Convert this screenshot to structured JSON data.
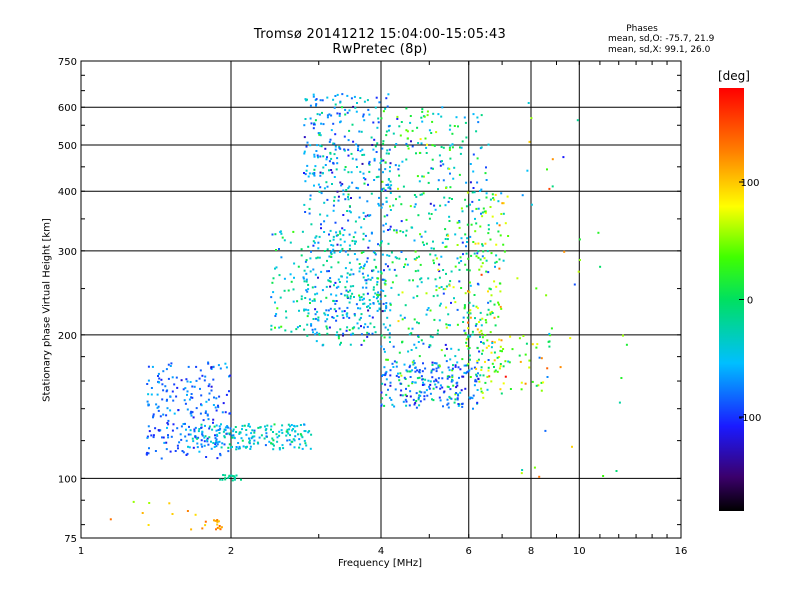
{
  "chart_data": {
    "type": "scatter",
    "title": "Tromsø 20141212 15:04:00-15:05:43",
    "subtitle": "RwPretec (8p)",
    "xlabel": "Frequency [MHz]",
    "ylabel": "Stationary phase Virtual Height [km]",
    "x_scale": "log",
    "y_scale": "log",
    "xlim": [
      1,
      16
    ],
    "ylim": [
      75,
      750
    ],
    "x_ticks": [
      1,
      2,
      4,
      6,
      8,
      10,
      16
    ],
    "x_tick_labels": [
      "1",
      "2",
      "4",
      "6",
      "8",
      "10",
      "16"
    ],
    "y_ticks": [
      75,
      100,
      200,
      300,
      400,
      500,
      600,
      750
    ],
    "y_tick_labels": [
      "75",
      "100",
      "200",
      "300",
      "400",
      "500",
      "600",
      "750"
    ],
    "grid": true,
    "phase_stats": {
      "title": "Phases",
      "o_line": "mean, sd,O: -75.7, 21.9",
      "x_line": "mean, sd,X:  99.1, 26.0"
    },
    "colorbar": {
      "unit": "[deg]",
      "range": [
        -180,
        180
      ],
      "ticks": [
        100,
        0,
        -100
      ],
      "tick_labels": [
        "100",
        "0",
        "-100"
      ],
      "colormap": "rainbow"
    },
    "groups": [
      {
        "x": [
          1.35,
          2.0
        ],
        "y": [
          110,
          175
        ],
        "n": 220,
        "phase_mean": -85,
        "phase_sd": 25
      },
      {
        "x": [
          1.6,
          2.9
        ],
        "y": [
          115,
          130
        ],
        "n": 200,
        "phase_mean": -40,
        "phase_sd": 30
      },
      {
        "x": [
          1.9,
          2.1
        ],
        "y": [
          99,
          102
        ],
        "n": 18,
        "phase_mean": -20,
        "phase_sd": 10
      },
      {
        "x": [
          2.8,
          4.2
        ],
        "y": [
          190,
          640
        ],
        "n": 520,
        "phase_mean": -60,
        "phase_sd": 45
      },
      {
        "x": [
          2.4,
          4.0
        ],
        "y": [
          200,
          330
        ],
        "n": 180,
        "phase_mean": -30,
        "phase_sd": 40
      },
      {
        "x": [
          4.0,
          6.6
        ],
        "y": [
          140,
          600
        ],
        "n": 520,
        "phase_mean": -20,
        "phase_sd": 60
      },
      {
        "x": [
          4.0,
          6.3
        ],
        "y": [
          140,
          175
        ],
        "n": 160,
        "phase_mean": -85,
        "phase_sd": 25
      },
      {
        "x": [
          5.9,
          7.2
        ],
        "y": [
          160,
          400
        ],
        "n": 140,
        "phase_mean": 40,
        "phase_sd": 70
      },
      {
        "x": [
          6.3,
          8.8
        ],
        "y": [
          150,
          200
        ],
        "n": 60,
        "phase_mean": 40,
        "phase_sd": 70
      },
      {
        "x": [
          7.5,
          12.5
        ],
        "y": [
          100,
          620
        ],
        "n": 40,
        "phase_mean": 30,
        "phase_sd": 80
      },
      {
        "x": [
          1.05,
          1.7
        ],
        "y": [
          78,
          90
        ],
        "n": 10,
        "phase_mean": 90,
        "phase_sd": 40
      },
      {
        "x": [
          1.75,
          1.92
        ],
        "y": [
          78,
          82
        ],
        "n": 15,
        "phase_mean": 120,
        "phase_sd": 20
      }
    ]
  }
}
